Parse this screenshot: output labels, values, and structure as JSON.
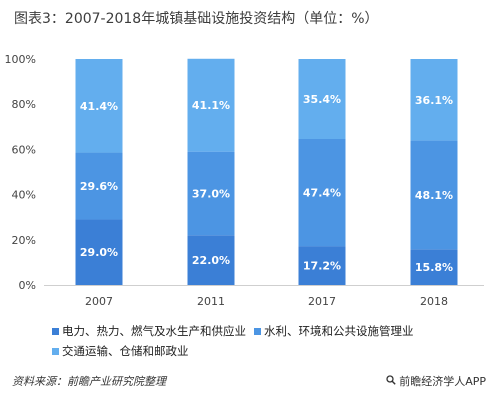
{
  "header": {
    "title": "图表3：2007-2018年城镇基础设施投资结构（单位：%）"
  },
  "chart_data": {
    "type": "bar",
    "stacked": true,
    "categories": [
      "2007",
      "2011",
      "2017",
      "2018"
    ],
    "series": [
      {
        "name": "电力、热力、燃气及水生产和供应业",
        "color": "#3b7fd6",
        "values": [
          29.0,
          22.0,
          17.2,
          15.8
        ],
        "labels": [
          "29.0%",
          "22.0%",
          "17.2%",
          "15.8%"
        ]
      },
      {
        "name": "水利、环境和公共设施管理业",
        "color": "#4c95e3",
        "values": [
          29.6,
          37.0,
          47.4,
          48.1
        ],
        "labels": [
          "29.6%",
          "37.0%",
          "47.4%",
          "48.1%"
        ]
      },
      {
        "name": "交通运输、仓储和邮政业",
        "color": "#63aeee",
        "values": [
          41.4,
          41.1,
          35.4,
          36.1
        ],
        "labels": [
          "41.4%",
          "41.1%",
          "35.4%",
          "36.1%"
        ]
      }
    ],
    "ylim": [
      0,
      100
    ],
    "yticks": [
      "0%",
      "20%",
      "40%",
      "60%",
      "80%",
      "100%"
    ],
    "grid": false,
    "legend_position": "bottom"
  },
  "footer": {
    "source": "资料来源：前瞻产业研究院整理",
    "brand": "前瞻经济学人APP",
    "brand_icon": "magnifier-icon"
  }
}
